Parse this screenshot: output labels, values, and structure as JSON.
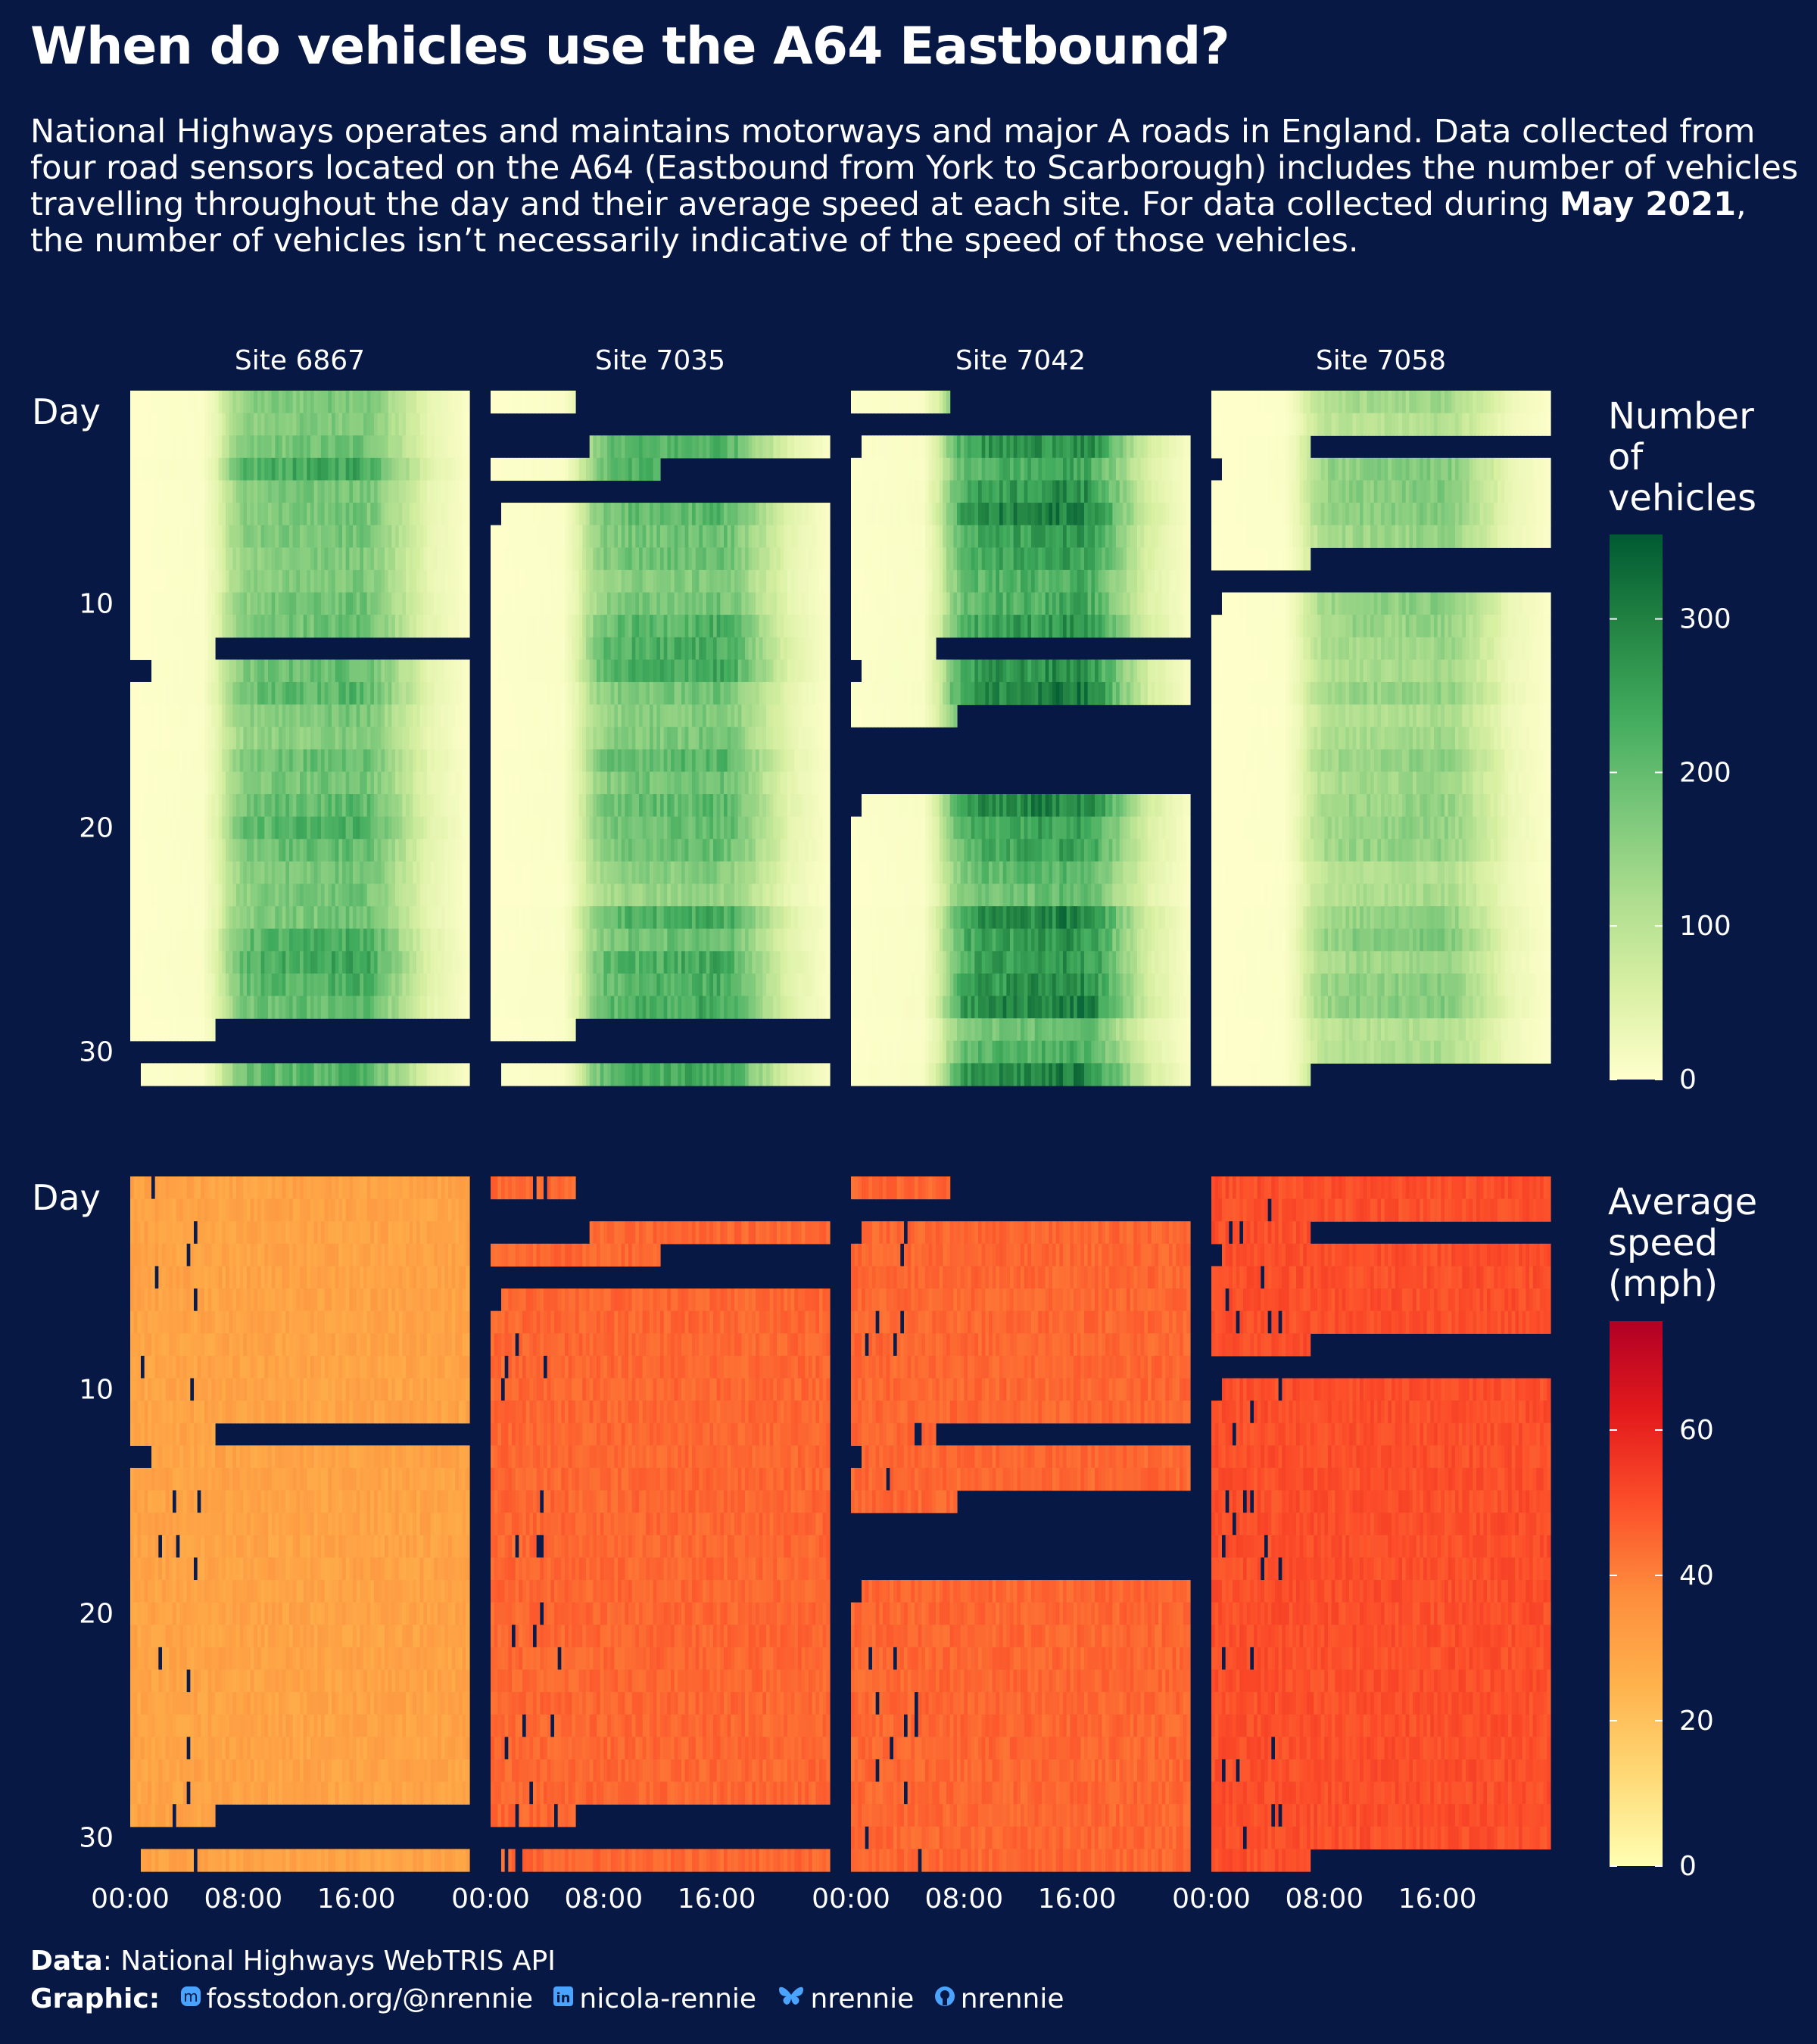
{
  "title": "When do vehicles use the A64 Eastbound?",
  "subtitle": {
    "part1": "National Highways operates and maintains motorways and major A roads in England. Data collected from four road sensors located on the A64 (Eastbound from York to Scarborough) includes the number of vehicles travelling throughout the day and their average speed at each site. For data collected during ",
    "bold": "May 2021",
    "part2": ", the number of vehicles isn’t necessarily indicative of the speed of those vehicles."
  },
  "caption": {
    "data_label": "Data",
    "data_text": ": National Highways WebTRIS API",
    "graphic_label": "Graphic",
    "mastodon": "fosstodon.org/@nrennie",
    "linkedin": "nicola-rennie",
    "bluesky": "nrennie",
    "github": "nrennie",
    "icons": [
      "mastodon-icon",
      "linkedin-icon",
      "bluesky-icon",
      "github-icon"
    ],
    "icon_color": "#4aa3ff"
  },
  "chart_data": {
    "type": "heatmap",
    "facets": [
      "Site 6867",
      "Site 7035",
      "Site 7042",
      "Site 7058"
    ],
    "x": {
      "label": "",
      "ticks": [
        "00:00",
        "08:00",
        "16:00"
      ],
      "tick_hours": [
        0,
        8,
        16
      ],
      "range_hours": [
        0,
        24
      ],
      "resolution_minutes": 15
    },
    "y": {
      "label": "Day",
      "ticks": [
        10,
        20,
        30
      ],
      "range": [
        1,
        31
      ],
      "reversed": true
    },
    "panels": [
      {
        "metric": "Number of vehicles",
        "legend_title": [
          "Number",
          "of",
          "vehicles"
        ],
        "scale_ticks": [
          0,
          100,
          200,
          300
        ],
        "limits": [
          0,
          355
        ],
        "palette": [
          "#ffffcc",
          "#d9f0a3",
          "#addd8e",
          "#78c679",
          "#41ab5d",
          "#238443",
          "#005a32"
        ],
        "typical_profile": {
          "hours": [
            0,
            5,
            6,
            7,
            8,
            10,
            13,
            16,
            17,
            19,
            21,
            24
          ],
          "values": [
            3,
            8,
            45,
            130,
            180,
            200,
            205,
            215,
            200,
            120,
            45,
            5
          ]
        },
        "site_scale": [
          1.0,
          1.0,
          1.3,
          0.7
        ]
      },
      {
        "metric": "Average speed (mph)",
        "legend_title": [
          "Average",
          "speed",
          "(mph)"
        ],
        "scale_ticks": [
          0,
          20,
          40,
          60
        ],
        "limits": [
          0,
          75
        ],
        "palette": [
          "#ffffb2",
          "#fed976",
          "#feb24c",
          "#fd8d3c",
          "#fc4e2a",
          "#e31a1c",
          "#b10026"
        ],
        "typical_speed": [
          30,
          45,
          45,
          50
        ]
      }
    ],
    "missing_periods": [
      {
        "site": "Site 6867",
        "periods": [
          [
            "day 12 06:00",
            "day 12 24:00"
          ],
          [
            "day 13 00:00",
            "day 13 01:30"
          ],
          [
            "day 29 06:00",
            "day 30 24:00"
          ],
          [
            "day 31 00:00",
            "day 31 00:45"
          ]
        ]
      },
      {
        "site": "Site 7035",
        "periods": [
          [
            "day 1 06:00",
            "day 3 07:00"
          ],
          [
            "day 4 12:00",
            "day 4 24:00"
          ],
          [
            "day 5 00:00",
            "day 6 00:45"
          ],
          [
            "day 29 06:00",
            "day 30 24:00"
          ],
          [
            "day 31 00:00",
            "day 31 00:45"
          ]
        ]
      },
      {
        "site": "Site 7042",
        "periods": [
          [
            "day 1 07:00",
            "day 2 24:00"
          ],
          [
            "day 3 00:00",
            "day 3 00:45"
          ],
          [
            "day 12 06:00",
            "day 12 24:00"
          ],
          [
            "day 13 00:00",
            "day 13 00:45"
          ],
          [
            "day 15 07:30",
            "day 18 24:00"
          ],
          [
            "day 19 00:00",
            "day 19 00:45"
          ]
        ]
      },
      {
        "site": "Site 7058",
        "periods": [
          [
            "day 3 07:00",
            "day 3 24:00"
          ],
          [
            "day 4 00:00",
            "day 4 00:45"
          ],
          [
            "day 8 07:00",
            "day 9 24:00"
          ],
          [
            "day 10 00:00",
            "day 10 00:45"
          ],
          [
            "day 31 07:00",
            "day 31 24:00"
          ]
        ]
      }
    ]
  }
}
